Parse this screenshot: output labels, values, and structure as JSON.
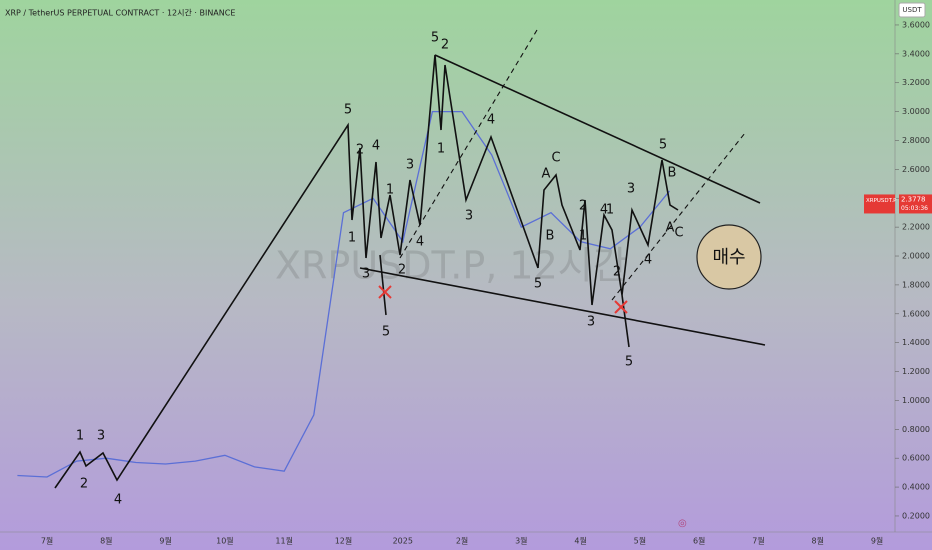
{
  "chart_data": {
    "type": "line",
    "title": "XRP / TetherUS PERPETUAL CONTRACT · 12시간 · BINANCE",
    "watermark": "XRPUSDT.P, 12시간",
    "currency": "USDT",
    "categories": [
      null,
      "7월",
      null,
      "8월",
      null,
      "9월",
      null,
      "10월",
      null,
      "11월",
      null,
      "12월",
      null,
      "2025",
      null,
      "2월",
      null,
      "3월",
      null,
      "4월",
      null,
      "5월",
      null,
      "6월",
      null,
      "7월",
      null,
      "8월",
      null,
      "9월"
    ],
    "series": [
      {
        "name": "XRPUSDT.P",
        "color": "#5b6fd6",
        "values": [
          0.48,
          0.47,
          0.58,
          0.6,
          0.57,
          0.56,
          0.58,
          0.62,
          0.54,
          0.51,
          0.9,
          2.3,
          2.4,
          2.1,
          3.0,
          3.0,
          2.7,
          2.2,
          2.3,
          2.1,
          2.05,
          2.2,
          2.45,
          null,
          null,
          null,
          null,
          null,
          null,
          null
        ]
      }
    ],
    "last_price": 2.3778,
    "countdown": "05:03:36",
    "ylim": [
      0.1,
      3.75
    ],
    "yticks": [
      {
        "value": 0.2,
        "label": "0.2000"
      },
      {
        "value": 0.4,
        "label": "0.4000"
      },
      {
        "value": 0.6,
        "label": "0.6000"
      },
      {
        "value": 0.8,
        "label": "0.8000"
      },
      {
        "value": 1.0,
        "label": "1.0000"
      },
      {
        "value": 1.2,
        "label": "1.2000"
      },
      {
        "value": 1.4,
        "label": "1.4000"
      },
      {
        "value": 1.6,
        "label": "1.6000"
      },
      {
        "value": 1.8,
        "label": "1.8000"
      },
      {
        "value": 2.0,
        "label": "2.0000"
      },
      {
        "value": 2.2,
        "label": "2.2000"
      },
      {
        "value": 2.4,
        "label": "2.4000"
      },
      {
        "value": 2.6,
        "label": "2.6000"
      },
      {
        "value": 2.8,
        "label": "2.8000"
      },
      {
        "value": 3.0,
        "label": "3.0000"
      },
      {
        "value": 3.2,
        "label": "3.2000"
      },
      {
        "value": 3.4,
        "label": "3.4000"
      },
      {
        "value": 3.6,
        "label": "3.6000"
      }
    ],
    "annotations": [
      "1",
      "2",
      "3",
      "4",
      "5",
      "1",
      "2",
      "3",
      "4",
      "1",
      "2",
      "3",
      "4",
      "5",
      "5",
      "2",
      "1",
      "3",
      "4",
      "5",
      "A",
      "C",
      "B",
      "1",
      "2",
      "4",
      "1",
      "3",
      "2",
      "5",
      "3",
      "4",
      "5",
      "B",
      "A",
      "C"
    ],
    "buy_label": "매수"
  }
}
